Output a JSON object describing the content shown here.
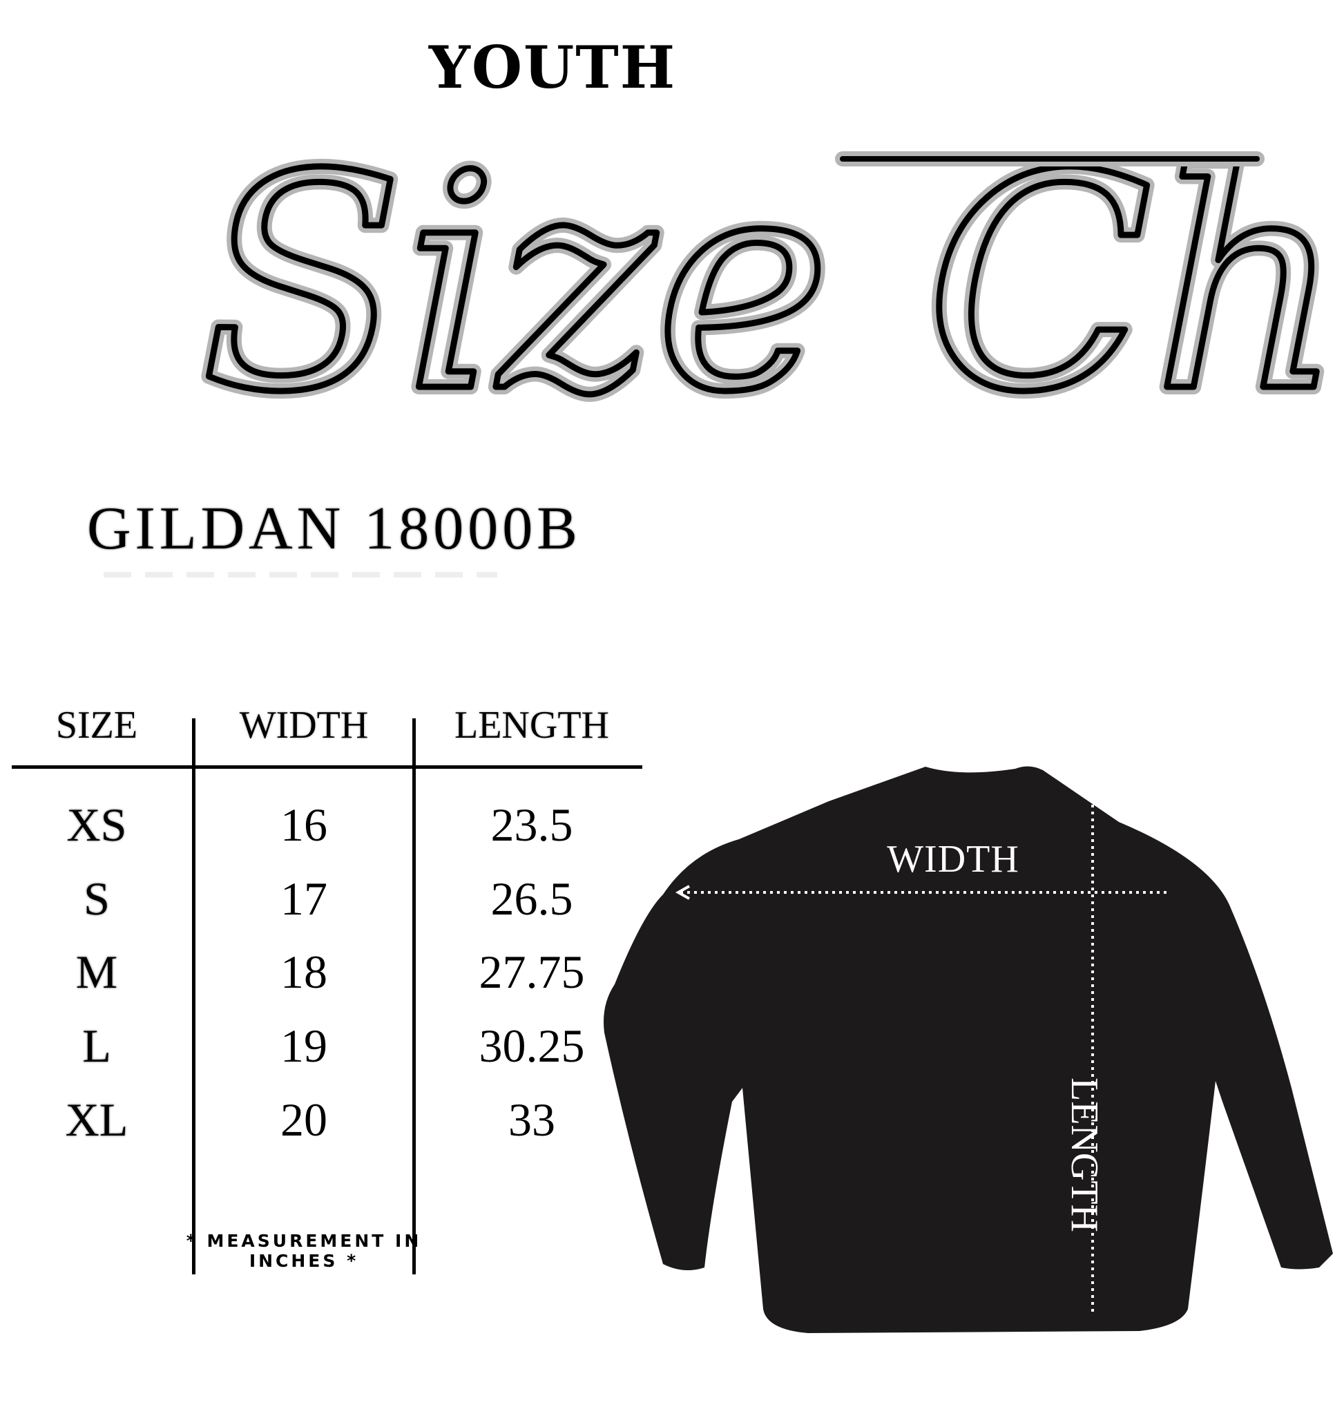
{
  "header": {
    "eyebrow": "YOUTH",
    "title_script": "Size Chart"
  },
  "product": {
    "model": "GILDAN 18000B"
  },
  "table": {
    "columns": [
      "SIZE",
      "WIDTH",
      "LENGTH"
    ],
    "rows": [
      {
        "size": "XS",
        "width": "16",
        "length": "23.5"
      },
      {
        "size": "S",
        "width": "17",
        "length": "26.5"
      },
      {
        "size": "M",
        "width": "18",
        "length": "27.75"
      },
      {
        "size": "L",
        "width": "19",
        "length": "30.25"
      },
      {
        "size": "XL",
        "width": "20",
        "length": "33"
      }
    ],
    "footnote": "* MEASUREMENT IN INCHES *"
  },
  "diagram": {
    "width_label": "WIDTH",
    "length_label": "LENGTH",
    "garment_color": "#1c1a1a"
  }
}
